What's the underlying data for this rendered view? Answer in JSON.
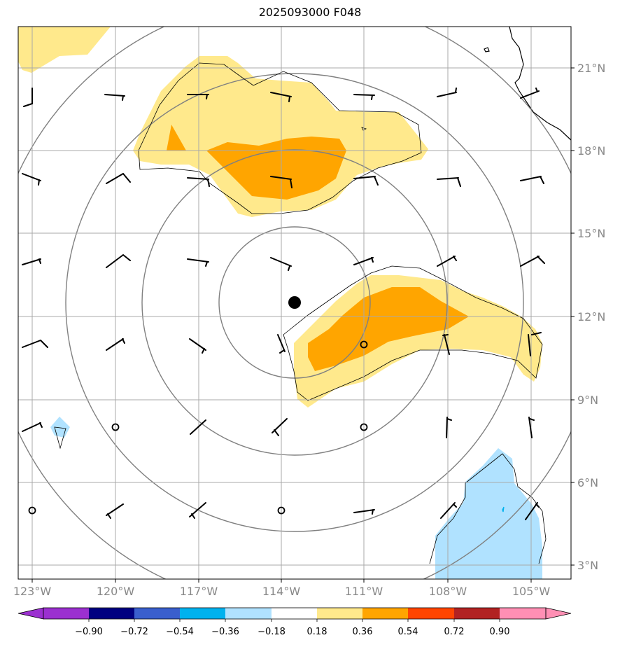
{
  "title": "2025093000 F048",
  "axes": {
    "lon_labels": [
      "123°W",
      "120°W",
      "117°W",
      "114°W",
      "111°W",
      "108°W",
      "105°W"
    ],
    "lat_labels": [
      "21°N",
      "18°N",
      "15°N",
      "12°N",
      "9°N",
      "6°N",
      "3°N"
    ]
  },
  "center_marker": "storm-center-dot",
  "colorbar": {
    "ticks": [
      "−0.90",
      "−0.72",
      "−0.54",
      "−0.36",
      "−0.18",
      "0.18",
      "0.36",
      "0.54",
      "0.72",
      "0.90"
    ],
    "colors": [
      "#9b30d0",
      "#000080",
      "#3a5fcd",
      "#00b2ee",
      "#b0e2ff",
      "#ffffff",
      "#ffe98c",
      "#ffa500",
      "#ff4500",
      "#b22222",
      "#ff8fb4"
    ]
  },
  "shading_colors": {
    "light_yellow": "#ffe98c",
    "orange": "#ffa500",
    "light_blue": "#b0e2ff"
  }
}
